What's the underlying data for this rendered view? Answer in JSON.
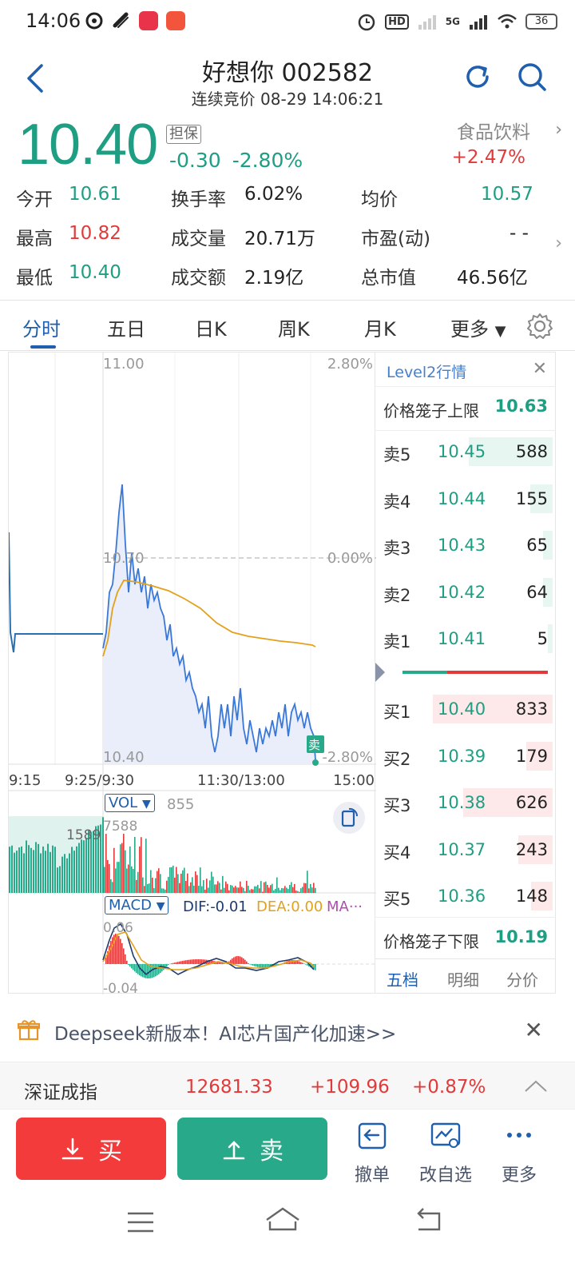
{
  "status": {
    "time": "14:06",
    "hd": "HD",
    "net": "5G",
    "battery": "36"
  },
  "header": {
    "title": "好想你 002582",
    "subtitle": "连续竞价 08-29 14:06:21"
  },
  "quote": {
    "price": "10.40",
    "badge": "担保",
    "change": "-0.30",
    "change_pct": "-2.80%",
    "sector": "食品饮料",
    "sector_pct": "+2.47%"
  },
  "stats": [
    {
      "label": "今开",
      "value": "10.61",
      "color": "green"
    },
    {
      "label": "换手率",
      "value": "6.02%",
      "color": "dark"
    },
    {
      "label": "均价",
      "value": "10.57",
      "color": "green"
    },
    {
      "label": "最高",
      "value": "10.82",
      "color": "red"
    },
    {
      "label": "成交量",
      "value": "20.71万",
      "color": "dark"
    },
    {
      "label": "市盈(动)",
      "value": "- -",
      "color": "dark"
    },
    {
      "label": "最低",
      "value": "10.40",
      "color": "green"
    },
    {
      "label": "成交额",
      "value": "2.19亿",
      "color": "dark"
    },
    {
      "label": "总市值",
      "value": "46.56亿",
      "color": "dark"
    }
  ],
  "tabs": [
    "分时",
    "五日",
    "日K",
    "周K",
    "月K",
    "更多"
  ],
  "chart": {
    "y_top": "11.00",
    "y_mid": "10.70",
    "y_bot": "10.40",
    "pct_top": "2.80%",
    "pct_mid": "0.00%",
    "pct_bot": "-2.80%",
    "x_labels": [
      "9:15",
      "9:25/9:30",
      "11:30/13:00",
      "15:00"
    ],
    "sell_marker": "卖",
    "vol_label": "VOL",
    "vol_value": "855",
    "vol_max": "7588",
    "auction_vol": "1589",
    "macd_label": "MACD",
    "dif": "DIF:-0.01",
    "dea": "DEA:0.00",
    "ma": "MA···",
    "macd_top": "0.06",
    "macd_bot": "-0.04"
  },
  "level2": {
    "title": "Level2行情",
    "upper_limit_label": "价格笼子上限",
    "upper_limit": "10.63",
    "lower_limit_label": "价格笼子下限",
    "lower_limit": "10.19",
    "asks": [
      {
        "label": "卖5",
        "price": "10.45",
        "vol": "588",
        "bar": 0.7
      },
      {
        "label": "卖4",
        "price": "10.44",
        "vol": "155",
        "bar": 0.19
      },
      {
        "label": "卖3",
        "price": "10.43",
        "vol": "65",
        "bar": 0.08
      },
      {
        "label": "卖2",
        "price": "10.42",
        "vol": "64",
        "bar": 0.08
      },
      {
        "label": "卖1",
        "price": "10.41",
        "vol": "5",
        "bar": 0.01
      }
    ],
    "bids": [
      {
        "label": "买1",
        "price": "10.40",
        "vol": "833",
        "bar": 1.0
      },
      {
        "label": "买2",
        "price": "10.39",
        "vol": "179",
        "bar": 0.22
      },
      {
        "label": "买3",
        "price": "10.38",
        "vol": "626",
        "bar": 0.75
      },
      {
        "label": "买4",
        "price": "10.37",
        "vol": "243",
        "bar": 0.29
      },
      {
        "label": "买5",
        "price": "10.36",
        "vol": "148",
        "bar": 0.18
      }
    ],
    "tabs": [
      "五档",
      "明细",
      "分价"
    ]
  },
  "banner": {
    "text": "Deepseek新版本！AI芯片国产化加速>>"
  },
  "index": {
    "name": "深证成指",
    "value": "12681.33",
    "change": "+109.96",
    "pct": "+0.87%"
  },
  "actions": {
    "buy": "买",
    "sell": "卖",
    "cancel": "撤单",
    "watchlist": "改自选",
    "more": "更多"
  },
  "colors": {
    "up": "#e23a3a",
    "down": "#1e9e82",
    "accent": "#1f5fae",
    "buy": "#f33b3b",
    "sell": "#27a98a"
  }
}
